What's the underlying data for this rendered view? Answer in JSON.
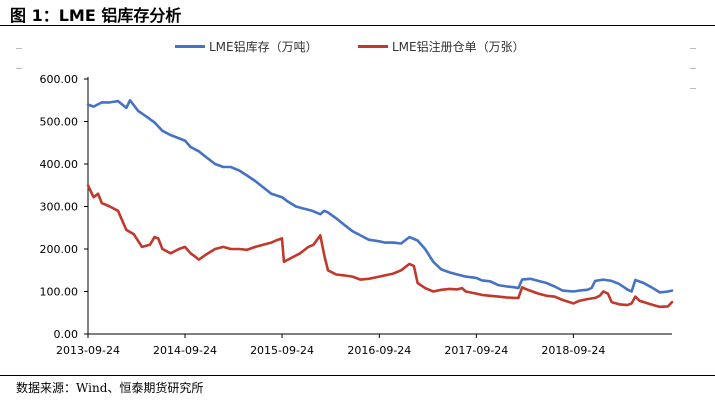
{
  "figure": {
    "title": "图 1：LME 铝库存分析",
    "source": "数据来源：Wind、恒泰期货研究所"
  },
  "chart_data": {
    "type": "line",
    "title": "",
    "xlabel": "",
    "ylabel": "",
    "ylim": [
      0,
      600
    ],
    "y_ticks": [
      "0.00",
      "100.00",
      "200.00",
      "300.00",
      "400.00",
      "500.00",
      "600.00"
    ],
    "x_ticks": [
      "2013-09-24",
      "2014-09-24",
      "2015-09-24",
      "2016-09-24",
      "2017-09-24",
      "2018-09-24"
    ],
    "x_range": [
      "2013-09-24",
      "2019-09-30"
    ],
    "grid": false,
    "legend_position": "top",
    "series": [
      {
        "name": "LME铝库存（万吨）",
        "color": "#4472C4",
        "points": [
          [
            "2013-09-24",
            540
          ],
          [
            "2013-10-15",
            535
          ],
          [
            "2013-11-15",
            545
          ],
          [
            "2013-12-15",
            545
          ],
          [
            "2014-01-15",
            548
          ],
          [
            "2014-02-15",
            532
          ],
          [
            "2014-03-01",
            550
          ],
          [
            "2014-04-01",
            525
          ],
          [
            "2014-05-01",
            512
          ],
          [
            "2014-06-01",
            498
          ],
          [
            "2014-07-01",
            478
          ],
          [
            "2014-08-01",
            468
          ],
          [
            "2014-09-24",
            455
          ],
          [
            "2014-10-15",
            440
          ],
          [
            "2014-11-15",
            430
          ],
          [
            "2014-12-15",
            415
          ],
          [
            "2015-01-15",
            400
          ],
          [
            "2015-02-15",
            393
          ],
          [
            "2015-03-15",
            393
          ],
          [
            "2015-04-15",
            385
          ],
          [
            "2015-05-15",
            373
          ],
          [
            "2015-06-15",
            360
          ],
          [
            "2015-07-15",
            345
          ],
          [
            "2015-08-15",
            330
          ],
          [
            "2015-09-24",
            322
          ],
          [
            "2015-10-15",
            312
          ],
          [
            "2015-11-15",
            300
          ],
          [
            "2015-12-15",
            295
          ],
          [
            "2016-01-15",
            290
          ],
          [
            "2016-02-15",
            282
          ],
          [
            "2016-03-01",
            290
          ],
          [
            "2016-03-15",
            286
          ],
          [
            "2016-04-15",
            272
          ],
          [
            "2016-05-15",
            257
          ],
          [
            "2016-06-15",
            242
          ],
          [
            "2016-07-15",
            232
          ],
          [
            "2016-08-15",
            222
          ],
          [
            "2016-09-24",
            218
          ],
          [
            "2016-10-15",
            215
          ],
          [
            "2016-11-15",
            215
          ],
          [
            "2016-12-15",
            213
          ],
          [
            "2017-01-15",
            228
          ],
          [
            "2017-02-15",
            220
          ],
          [
            "2017-03-15",
            200
          ],
          [
            "2017-04-15",
            170
          ],
          [
            "2017-05-15",
            152
          ],
          [
            "2017-06-15",
            145
          ],
          [
            "2017-07-15",
            140
          ],
          [
            "2017-08-15",
            135
          ],
          [
            "2017-09-24",
            132
          ],
          [
            "2017-10-15",
            126
          ],
          [
            "2017-11-15",
            124
          ],
          [
            "2017-12-15",
            115
          ],
          [
            "2018-01-15",
            112
          ],
          [
            "2018-02-15",
            110
          ],
          [
            "2018-03-01",
            108
          ],
          [
            "2018-03-15",
            128
          ],
          [
            "2018-04-15",
            130
          ],
          [
            "2018-05-15",
            125
          ],
          [
            "2018-06-15",
            120
          ],
          [
            "2018-07-15",
            112
          ],
          [
            "2018-08-15",
            102
          ],
          [
            "2018-09-24",
            100
          ],
          [
            "2018-10-15",
            102
          ],
          [
            "2018-11-15",
            104
          ],
          [
            "2018-12-01",
            108
          ],
          [
            "2018-12-15",
            125
          ],
          [
            "2019-01-15",
            128
          ],
          [
            "2019-02-15",
            125
          ],
          [
            "2019-03-15",
            118
          ],
          [
            "2019-04-15",
            105
          ],
          [
            "2019-05-01",
            100
          ],
          [
            "2019-05-15",
            127
          ],
          [
            "2019-06-15",
            120
          ],
          [
            "2019-07-15",
            110
          ],
          [
            "2019-08-15",
            98
          ],
          [
            "2019-09-15",
            100
          ],
          [
            "2019-09-30",
            102
          ]
        ]
      },
      {
        "name": "LME铝注册仓单（万张）",
        "color": "#C0392B",
        "points": [
          [
            "2013-09-24",
            350
          ],
          [
            "2013-10-01",
            340
          ],
          [
            "2013-10-15",
            322
          ],
          [
            "2013-11-01",
            330
          ],
          [
            "2013-11-15",
            308
          ],
          [
            "2013-12-15",
            300
          ],
          [
            "2014-01-15",
            290
          ],
          [
            "2014-02-15",
            245
          ],
          [
            "2014-03-15",
            235
          ],
          [
            "2014-04-15",
            205
          ],
          [
            "2014-05-15",
            210
          ],
          [
            "2014-06-01",
            228
          ],
          [
            "2014-06-15",
            225
          ],
          [
            "2014-07-01",
            200
          ],
          [
            "2014-08-01",
            190
          ],
          [
            "2014-09-01",
            200
          ],
          [
            "2014-09-24",
            205
          ],
          [
            "2014-10-15",
            190
          ],
          [
            "2014-11-01",
            182
          ],
          [
            "2014-11-15",
            175
          ],
          [
            "2014-12-15",
            188
          ],
          [
            "2015-01-15",
            200
          ],
          [
            "2015-02-15",
            205
          ],
          [
            "2015-03-15",
            200
          ],
          [
            "2015-04-15",
            200
          ],
          [
            "2015-05-15",
            198
          ],
          [
            "2015-06-15",
            205
          ],
          [
            "2015-07-15",
            210
          ],
          [
            "2015-08-15",
            215
          ],
          [
            "2015-09-01",
            220
          ],
          [
            "2015-09-24",
            225
          ],
          [
            "2015-10-01",
            170
          ],
          [
            "2015-11-01",
            180
          ],
          [
            "2015-12-01",
            190
          ],
          [
            "2016-01-01",
            205
          ],
          [
            "2016-01-20",
            210
          ],
          [
            "2016-02-15",
            232
          ],
          [
            "2016-03-01",
            185
          ],
          [
            "2016-03-15",
            150
          ],
          [
            "2016-04-15",
            140
          ],
          [
            "2016-05-15",
            138
          ],
          [
            "2016-06-15",
            135
          ],
          [
            "2016-07-15",
            128
          ],
          [
            "2016-08-15",
            130
          ],
          [
            "2016-09-24",
            135
          ],
          [
            "2016-10-15",
            138
          ],
          [
            "2016-11-15",
            142
          ],
          [
            "2016-12-15",
            150
          ],
          [
            "2017-01-15",
            165
          ],
          [
            "2017-02-01",
            160
          ],
          [
            "2017-02-15",
            120
          ],
          [
            "2017-03-15",
            108
          ],
          [
            "2017-04-15",
            100
          ],
          [
            "2017-05-15",
            104
          ],
          [
            "2017-06-15",
            106
          ],
          [
            "2017-07-15",
            105
          ],
          [
            "2017-08-01",
            108
          ],
          [
            "2017-08-15",
            100
          ],
          [
            "2017-09-24",
            95
          ],
          [
            "2017-10-15",
            92
          ],
          [
            "2017-11-15",
            90
          ],
          [
            "2017-12-15",
            88
          ],
          [
            "2018-01-15",
            86
          ],
          [
            "2018-02-15",
            85
          ],
          [
            "2018-03-01",
            85
          ],
          [
            "2018-03-15",
            110
          ],
          [
            "2018-04-01",
            105
          ],
          [
            "2018-05-15",
            95
          ],
          [
            "2018-06-15",
            90
          ],
          [
            "2018-07-15",
            88
          ],
          [
            "2018-08-15",
            80
          ],
          [
            "2018-09-24",
            72
          ],
          [
            "2018-10-15",
            78
          ],
          [
            "2018-11-15",
            82
          ],
          [
            "2018-12-15",
            85
          ],
          [
            "2019-01-01",
            90
          ],
          [
            "2019-01-15",
            100
          ],
          [
            "2019-02-01",
            95
          ],
          [
            "2019-02-15",
            75
          ],
          [
            "2019-03-15",
            70
          ],
          [
            "2019-04-15",
            68
          ],
          [
            "2019-05-01",
            72
          ],
          [
            "2019-05-15",
            88
          ],
          [
            "2019-06-01",
            78
          ],
          [
            "2019-07-01",
            72
          ],
          [
            "2019-08-01",
            66
          ],
          [
            "2019-08-15",
            64
          ],
          [
            "2019-09-15",
            65
          ],
          [
            "2019-09-30",
            75
          ]
        ]
      }
    ]
  }
}
